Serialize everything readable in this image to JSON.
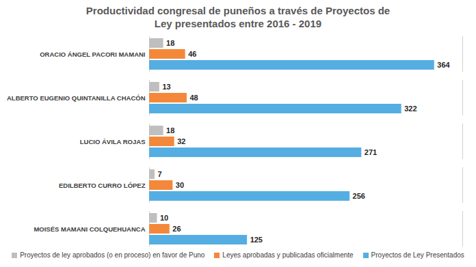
{
  "chart_data": {
    "type": "bar",
    "orientation": "horizontal",
    "title": "Productividad congresal de puneños a través de Proyectos de Ley presentados entre 2016 - 2019",
    "categories": [
      "ORACIO ÁNGEL PACORI MAMANI",
      "ALBERTO EUGENIO QUINTANILLA CHACÓN",
      "LUCIO ÁVILA ROJAS",
      "EDILBERTO CURRO LÓPEZ",
      "MOISÉS MAMANI COLQUEHUANCA"
    ],
    "series": [
      {
        "name": "Proyectos de ley aprobados (o en proceso) en favor de Puno",
        "color": "#bfbfbf",
        "values": [
          18,
          13,
          18,
          7,
          10
        ]
      },
      {
        "name": "Leyes aprobadas y publicadas oficialmente",
        "color": "#f4883a",
        "values": [
          46,
          48,
          32,
          30,
          26
        ]
      },
      {
        "name": "Proyectos de Ley Presentados",
        "color": "#55aee2",
        "values": [
          364,
          322,
          271,
          256,
          125
        ]
      }
    ],
    "xlim": [
      0,
      400
    ],
    "data_labels": true,
    "tick_labels": "y",
    "legend": "bottom"
  }
}
